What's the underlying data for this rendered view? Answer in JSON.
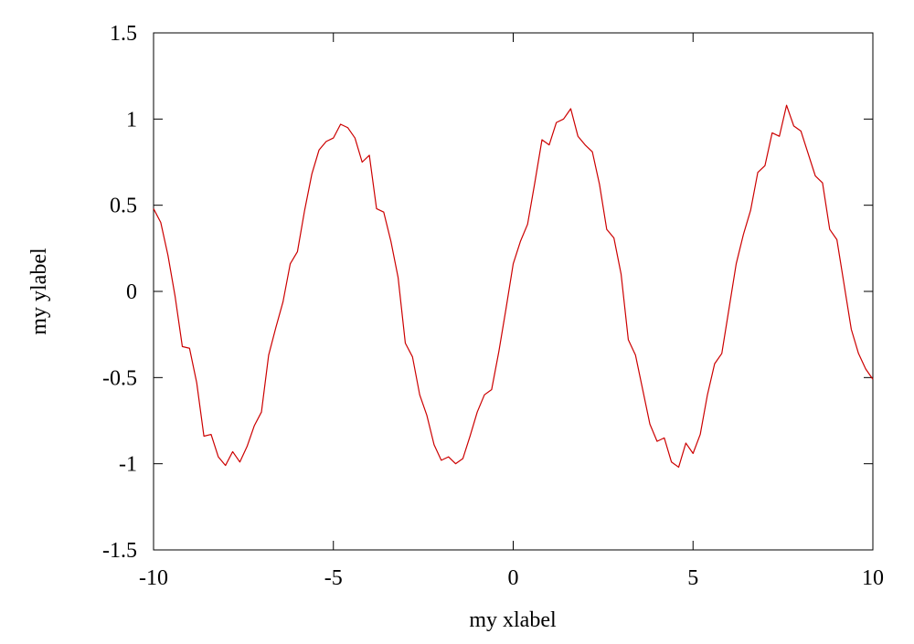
{
  "chart_data": {
    "type": "line",
    "x_label": "my xlabel",
    "y_label": "my ylabel",
    "color": "#cc0000",
    "x": [
      -10,
      -9.8,
      -9.6,
      -9.4,
      -9.2,
      -9,
      -8.8,
      -8.6,
      -8.4,
      -8.2,
      -8,
      -7.8,
      -7.6,
      -7.4,
      -7.2,
      -7,
      -6.8,
      -6.6,
      -6.4,
      -6.2,
      -6,
      -5.8,
      -5.6,
      -5.4,
      -5.2,
      -5,
      -4.8,
      -4.6,
      -4.4,
      -4.2,
      -4,
      -3.8,
      -3.6,
      -3.4,
      -3.2,
      -3,
      -2.8,
      -2.6,
      -2.4,
      -2.2,
      -2,
      -1.8,
      -1.6,
      -1.4,
      -1.2,
      -1,
      -0.8,
      -0.6,
      -0.4,
      -0.2,
      0,
      0.2,
      0.4,
      0.6,
      0.8,
      1,
      1.2,
      1.4,
      1.6,
      1.8,
      2,
      2.2,
      2.4,
      2.6,
      2.8,
      3,
      3.2,
      3.4,
      3.6,
      3.8,
      4,
      4.2,
      4.4,
      4.6,
      4.8,
      5,
      5.2,
      5.4,
      5.6,
      5.8,
      6,
      6.2,
      6.4,
      6.6,
      6.8,
      7,
      7.2,
      7.4,
      7.6,
      7.8,
      8,
      8.2,
      8.4,
      8.6,
      8.8,
      9,
      9.2,
      9.4,
      9.6,
      9.8,
      10
    ],
    "values": [
      0.48,
      0.4,
      0.21,
      -0.03,
      -0.32,
      -0.33,
      -0.53,
      -0.84,
      -0.83,
      -0.96,
      -1.01,
      -0.93,
      -0.99,
      -0.9,
      -0.78,
      -0.7,
      -0.37,
      -0.21,
      -0.06,
      0.16,
      0.23,
      0.47,
      0.68,
      0.82,
      0.87,
      0.89,
      0.97,
      0.95,
      0.89,
      0.75,
      0.79,
      0.48,
      0.46,
      0.29,
      0.08,
      -0.3,
      -0.38,
      -0.6,
      -0.72,
      -0.89,
      -0.98,
      -0.96,
      -1.0,
      -0.97,
      -0.84,
      -0.7,
      -0.6,
      -0.57,
      -0.35,
      -0.1,
      0.16,
      0.29,
      0.39,
      0.63,
      0.88,
      0.85,
      0.98,
      1.0,
      1.06,
      0.9,
      0.85,
      0.81,
      0.62,
      0.36,
      0.31,
      0.1,
      -0.28,
      -0.37,
      -0.57,
      -0.77,
      -0.87,
      -0.85,
      -0.99,
      -1.02,
      -0.88,
      -0.94,
      -0.83,
      -0.6,
      -0.42,
      -0.36,
      -0.1,
      0.16,
      0.33,
      0.47,
      0.69,
      0.73,
      0.92,
      0.9,
      1.08,
      0.96,
      0.93,
      0.8,
      0.67,
      0.63,
      0.36,
      0.3,
      0.04,
      -0.22,
      -0.36,
      -0.45,
      -0.51
    ],
    "xlim": [
      -10,
      10
    ],
    "xticks": [
      -10,
      -5,
      0,
      5,
      10
    ],
    "ylim": [
      -1.5,
      1.5
    ],
    "yticks": [
      -1.5,
      -1,
      -0.5,
      0,
      0.5,
      1,
      1.5
    ],
    "grid": false
  }
}
